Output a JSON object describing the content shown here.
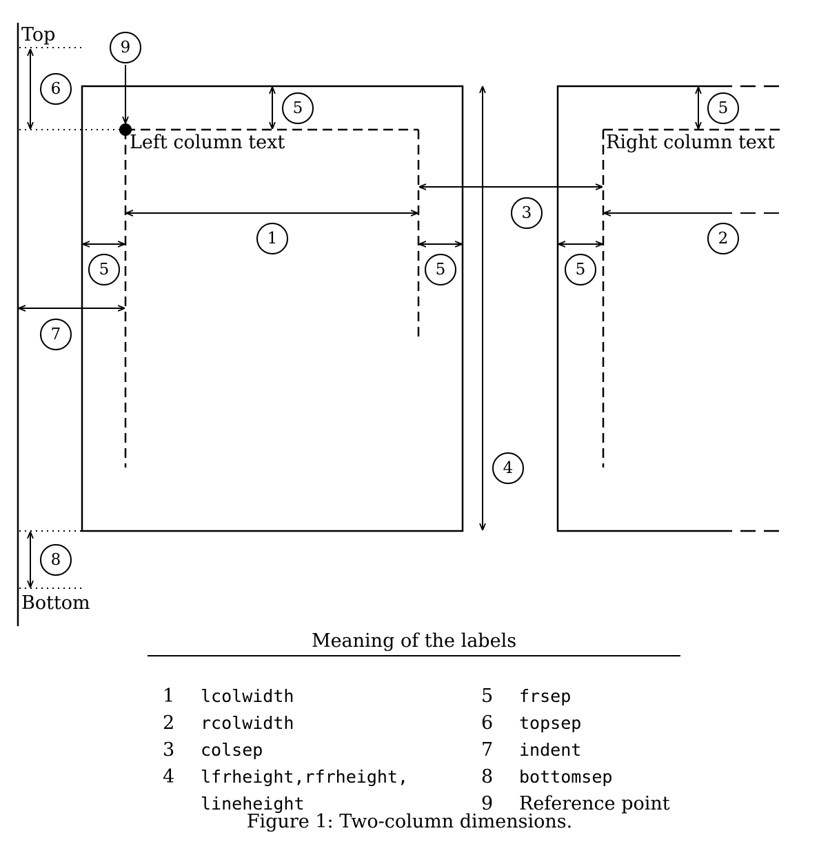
{
  "diagram": {
    "margin_top_label": "Top",
    "margin_bottom_label": "Bottom",
    "left_column_text": "Left column text",
    "right_column_text": "Right column text",
    "callouts": {
      "c1": "1",
      "c2": "2",
      "c3": "3",
      "c4": "4",
      "c5": "5",
      "c6": "6",
      "c7": "7",
      "c8": "8",
      "c9": "9"
    }
  },
  "legend": {
    "title": "Meaning of the labels",
    "entries": [
      {
        "num": "1",
        "name": "lcolwidth"
      },
      {
        "num": "2",
        "name": "rcolwidth"
      },
      {
        "num": "3",
        "name": "colsep"
      },
      {
        "num": "4",
        "name": "lfrheight,rfrheight,",
        "name2": "lineheight"
      },
      {
        "num": "5",
        "name": "frsep"
      },
      {
        "num": "6",
        "name": "topsep"
      },
      {
        "num": "7",
        "name": "indent"
      },
      {
        "num": "8",
        "name": "bottomsep"
      },
      {
        "num": "9",
        "name": "Reference point"
      }
    ]
  },
  "caption": "Figure 1: Two-column dimensions."
}
